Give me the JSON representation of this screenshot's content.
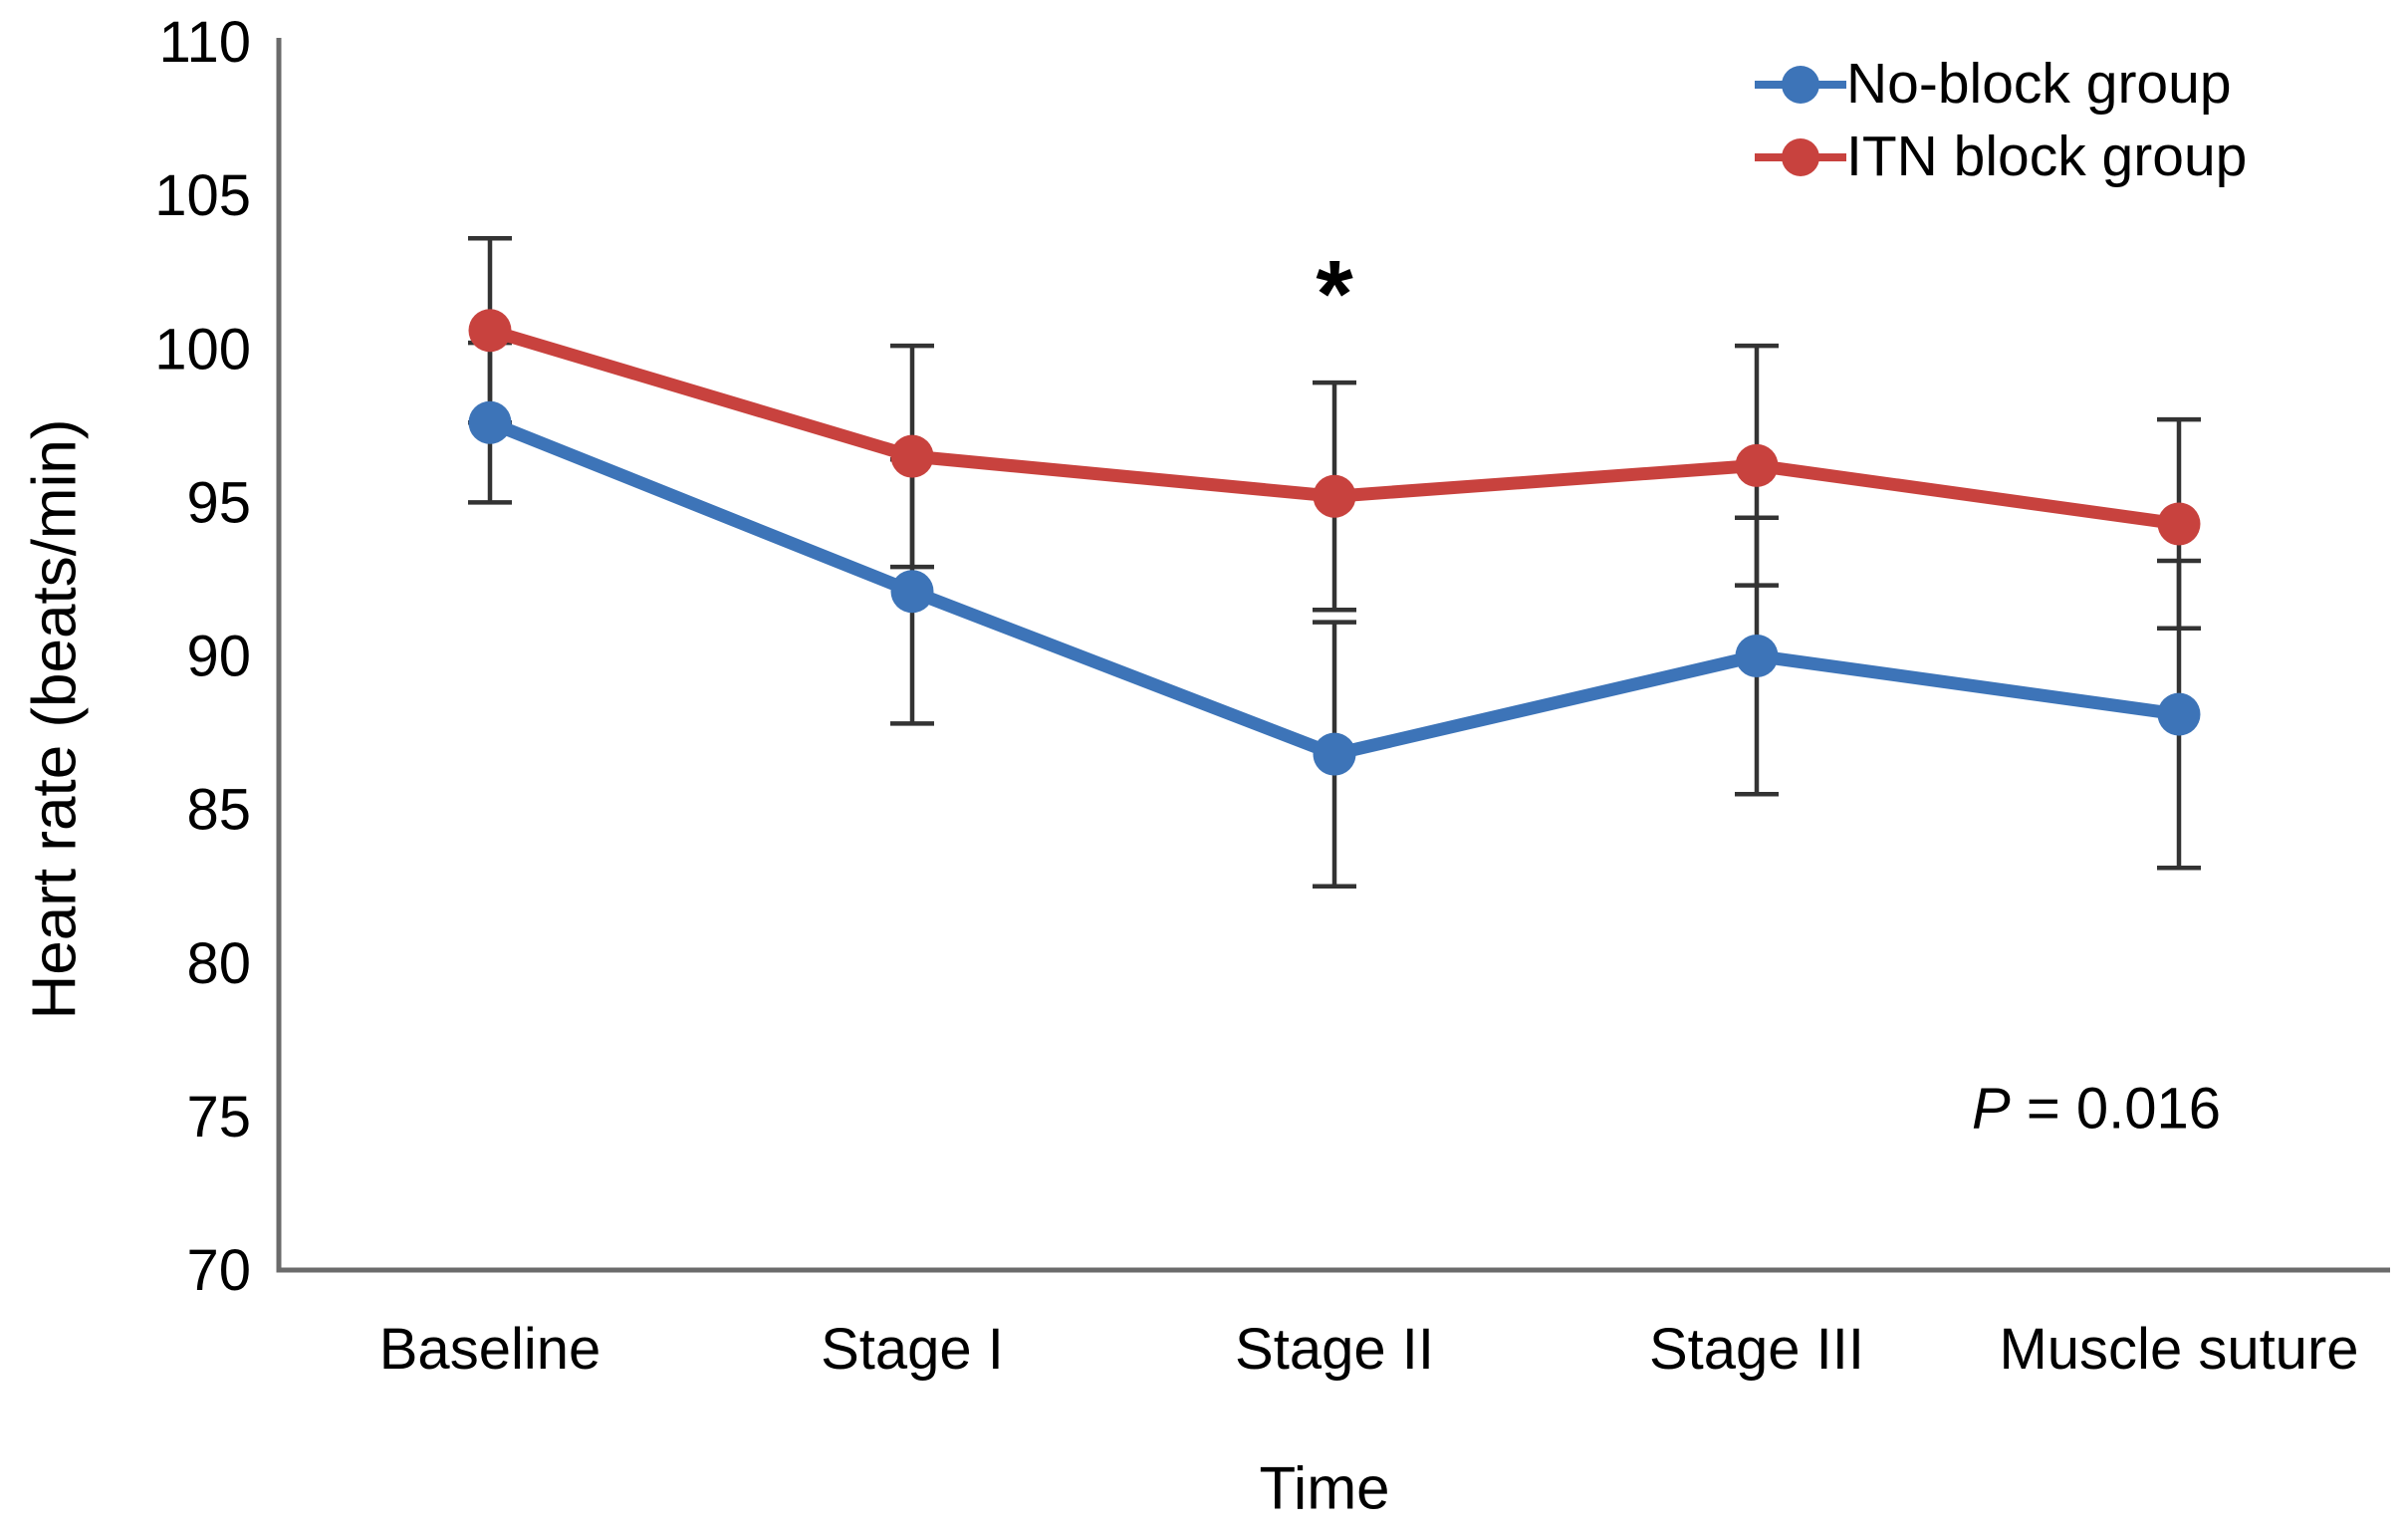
{
  "figure": {
    "y_axis_label": "Heart rate (beats/min)",
    "x_axis_label": "Time",
    "p_label": "P",
    "p_rest": " = 0.016",
    "significance_marker": "*"
  },
  "chart_data": {
    "type": "line",
    "title": "",
    "xlabel": "Time",
    "ylabel": "Heart rate (beats/min)",
    "categories": [
      "Baseline",
      "Stage I",
      "Stage II",
      "Stage III",
      "Muscle suture"
    ],
    "ylim": [
      70,
      110
    ],
    "yticks": [
      110,
      105,
      100,
      95,
      90,
      85,
      80,
      75,
      70
    ],
    "grid": false,
    "error_bars": true,
    "legend_position": "top-right",
    "series": [
      {
        "name": "No-block group",
        "color": "#3D74B8",
        "values": [
          97.6,
          92.1,
          86.8,
          90.0,
          88.1
        ],
        "sd": [
          2.6,
          4.3,
          4.3,
          4.5,
          5.0
        ]
      },
      {
        "name": "ITN block group",
        "color": "#C8423E",
        "values": [
          100.6,
          96.5,
          95.2,
          96.2,
          94.3
        ],
        "sd": [
          3.0,
          3.6,
          3.7,
          3.9,
          3.4
        ]
      }
    ],
    "annotations": [
      {
        "text": "*",
        "category": "Stage II",
        "y": 102.3
      },
      {
        "text": "P = 0.016",
        "position": "bottom-right"
      }
    ],
    "colors": {
      "axis": "#6B6B6B",
      "error_bar": "#333333",
      "text": "#000000",
      "background": "#FFFFFF"
    }
  }
}
